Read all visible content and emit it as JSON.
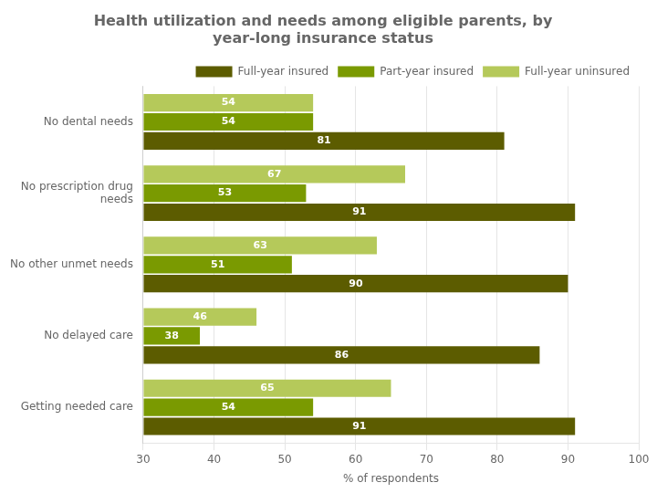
{
  "chart_data": {
    "type": "bar",
    "orientation": "horizontal",
    "title": "Health utilization and needs among eligible parents, by\nyear-long insurance status",
    "categories": [
      "No dental needs",
      "No prescription drug\nneeds",
      "No other unmet needs",
      "No delayed care",
      "Getting needed care"
    ],
    "series": [
      {
        "name": "Full-year insured",
        "color": "#5c5c00",
        "values": [
          81,
          91,
          90,
          86,
          91
        ]
      },
      {
        "name": "Part-year insured",
        "color": "#7a9a01",
        "values": [
          54,
          53,
          51,
          38,
          54
        ]
      },
      {
        "name": "Full-year uninsured",
        "color": "#b5c95a",
        "values": [
          54,
          67,
          63,
          46,
          65
        ]
      }
    ],
    "xlabel": "% of respondents",
    "xlim": [
      30,
      100
    ],
    "xticks": [
      30,
      40,
      50,
      60,
      70,
      80,
      90,
      100
    ],
    "grid": true,
    "legend": "upper right",
    "data_labels": true
  }
}
